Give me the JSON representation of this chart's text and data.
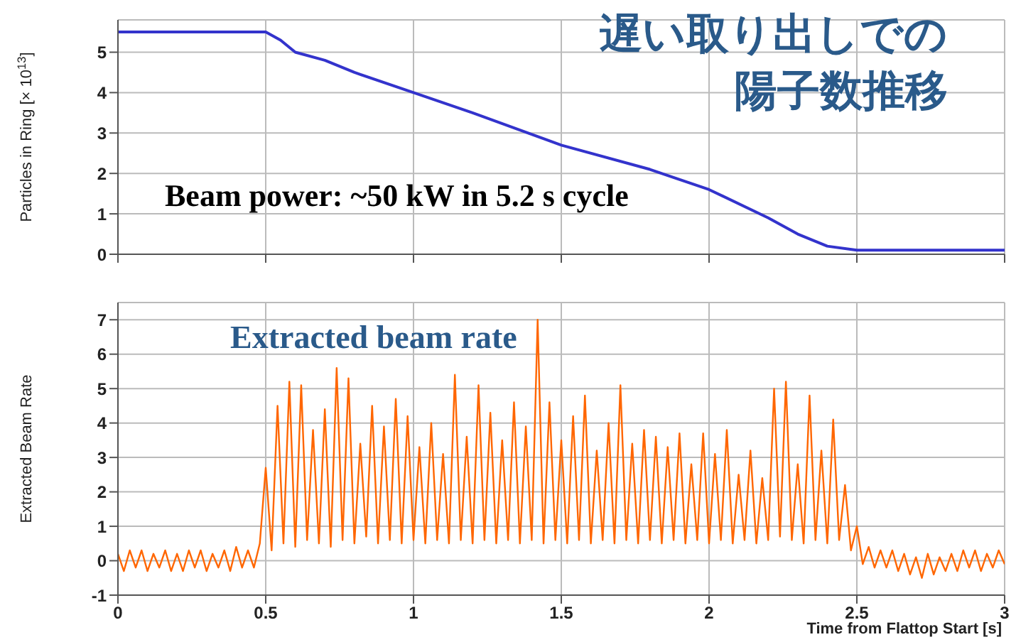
{
  "chart_data": [
    {
      "type": "line",
      "ylabel": "Particles in Ring [× 10$^{13}$]",
      "annotations": [
        "遅い取り出しでの",
        "陽子数推移",
        "Beam power: ~50 kW in 5.2 s cycle"
      ],
      "series": [
        {
          "color": "#3333cc",
          "x": [
            0,
            0.5,
            0.55,
            0.6,
            0.7,
            0.8,
            1.0,
            1.2,
            1.5,
            1.8,
            2.0,
            2.2,
            2.3,
            2.4,
            2.5,
            3.0
          ],
          "values": [
            5.5,
            5.5,
            5.3,
            5.0,
            4.8,
            4.5,
            4.0,
            3.5,
            2.7,
            2.1,
            1.6,
            0.9,
            0.5,
            0.2,
            0.1,
            0.1
          ]
        }
      ],
      "xlim": [
        0,
        3
      ],
      "xticks": [
        0,
        0.5,
        1,
        1.5,
        2,
        2.5,
        3
      ],
      "ylim": [
        0,
        5.8
      ],
      "yticks": [
        0,
        1,
        2,
        3,
        4,
        5
      ],
      "grid": true,
      "tick_labels": "y",
      "marker": "none",
      "line_style": "solid"
    },
    {
      "type": "line",
      "xlabel": "Time from Flattop Start [s]",
      "ylabel": "Extracted Beam Rate",
      "annotations": [
        "Extracted beam rate"
      ],
      "series": [
        {
          "color": "#ff6600",
          "x": [
            0,
            0.02,
            0.04,
            0.06,
            0.08,
            0.1,
            0.12,
            0.14,
            0.16,
            0.18,
            0.2,
            0.22,
            0.24,
            0.26,
            0.28,
            0.3,
            0.32,
            0.34,
            0.36,
            0.38,
            0.4,
            0.42,
            0.44,
            0.46,
            0.48,
            0.5,
            0.52,
            0.54,
            0.56,
            0.58,
            0.6,
            0.62,
            0.64,
            0.66,
            0.68,
            0.7,
            0.72,
            0.74,
            0.76,
            0.78,
            0.8,
            0.82,
            0.84,
            0.86,
            0.88,
            0.9,
            0.92,
            0.94,
            0.96,
            0.98,
            1.0,
            1.02,
            1.04,
            1.06,
            1.08,
            1.1,
            1.12,
            1.14,
            1.16,
            1.18,
            1.2,
            1.22,
            1.24,
            1.26,
            1.28,
            1.3,
            1.32,
            1.34,
            1.36,
            1.38,
            1.4,
            1.42,
            1.44,
            1.46,
            1.48,
            1.5,
            1.52,
            1.54,
            1.56,
            1.58,
            1.6,
            1.62,
            1.64,
            1.66,
            1.68,
            1.7,
            1.72,
            1.74,
            1.76,
            1.78,
            1.8,
            1.82,
            1.84,
            1.86,
            1.88,
            1.9,
            1.92,
            1.94,
            1.96,
            1.98,
            2.0,
            2.02,
            2.04,
            2.06,
            2.08,
            2.1,
            2.12,
            2.14,
            2.16,
            2.18,
            2.2,
            2.22,
            2.24,
            2.26,
            2.28,
            2.3,
            2.32,
            2.34,
            2.36,
            2.38,
            2.4,
            2.42,
            2.44,
            2.46,
            2.48,
            2.5,
            2.52,
            2.54,
            2.56,
            2.58,
            2.6,
            2.62,
            2.64,
            2.66,
            2.68,
            2.7,
            2.72,
            2.74,
            2.76,
            2.78,
            2.8,
            2.82,
            2.84,
            2.86,
            2.88,
            2.9,
            2.92,
            2.94,
            2.96,
            2.98,
            3.0
          ],
          "values": [
            0.2,
            -0.3,
            0.3,
            -0.2,
            0.3,
            -0.3,
            0.2,
            -0.2,
            0.3,
            -0.3,
            0.2,
            -0.3,
            0.3,
            -0.2,
            0.3,
            -0.3,
            0.2,
            -0.2,
            0.3,
            -0.3,
            0.4,
            -0.2,
            0.3,
            -0.2,
            0.5,
            2.7,
            0.3,
            4.5,
            0.5,
            5.2,
            0.4,
            5.1,
            0.6,
            3.8,
            0.5,
            4.4,
            0.4,
            5.6,
            0.6,
            5.3,
            0.5,
            3.4,
            0.7,
            4.5,
            0.5,
            3.9,
            0.6,
            4.7,
            0.5,
            4.2,
            0.6,
            3.3,
            0.5,
            4.0,
            0.6,
            3.1,
            0.5,
            5.4,
            0.6,
            3.6,
            0.5,
            5.1,
            0.6,
            4.3,
            0.5,
            3.5,
            0.6,
            4.6,
            0.5,
            3.9,
            0.6,
            7.0,
            0.5,
            4.6,
            0.6,
            3.5,
            0.5,
            4.2,
            0.6,
            4.8,
            0.5,
            3.2,
            0.6,
            4.0,
            0.5,
            5.1,
            0.6,
            3.4,
            0.5,
            3.8,
            0.6,
            3.6,
            0.5,
            3.3,
            0.6,
            3.7,
            0.5,
            2.8,
            0.6,
            3.7,
            0.5,
            3.1,
            0.6,
            3.8,
            0.5,
            2.5,
            0.6,
            3.2,
            0.5,
            2.4,
            0.6,
            5.0,
            0.7,
            5.2,
            0.6,
            2.8,
            0.5,
            4.8,
            0.6,
            3.2,
            0.5,
            4.1,
            0.6,
            2.2,
            0.3,
            1.0,
            -0.1,
            0.4,
            -0.2,
            0.3,
            -0.2,
            0.3,
            -0.3,
            0.2,
            -0.4,
            0.1,
            -0.5,
            0.2,
            -0.4,
            0.1,
            -0.3,
            0.2,
            -0.3,
            0.3,
            -0.2,
            0.3,
            -0.3,
            0.2,
            -0.2,
            0.3,
            -0.1
          ]
        }
      ],
      "xlim": [
        0,
        3
      ],
      "xticks": [
        0,
        0.5,
        1,
        1.5,
        2,
        2.5,
        3
      ],
      "ylim": [
        -1,
        7.5
      ],
      "yticks": [
        -1,
        0,
        1,
        2,
        3,
        4,
        5,
        6,
        7
      ],
      "grid": true,
      "marker": "none",
      "line_style": "solid"
    }
  ]
}
